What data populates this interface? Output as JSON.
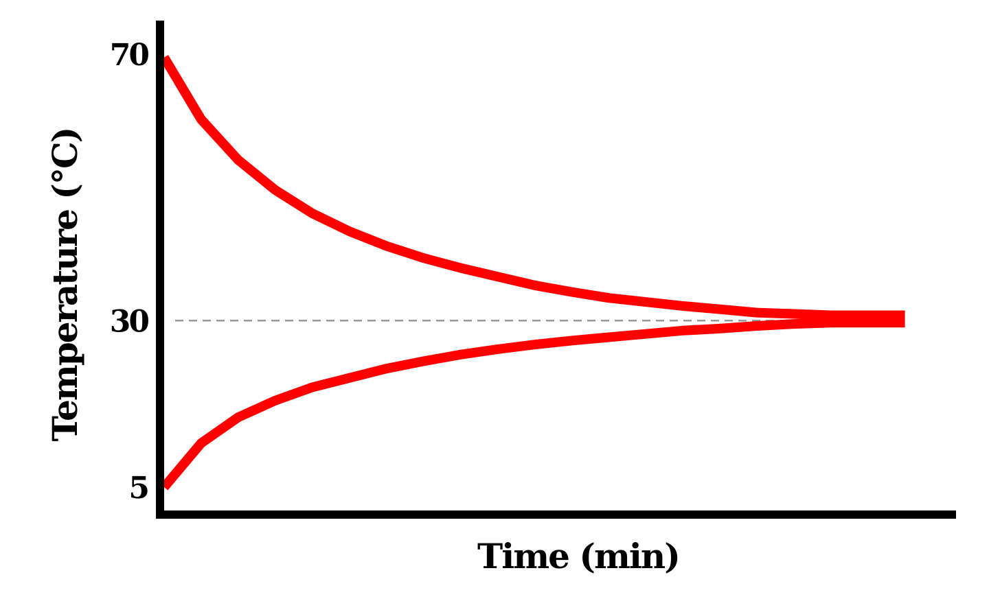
{
  "chart_data": {
    "type": "line",
    "title": "",
    "xlabel": "Time (min)",
    "ylabel": "Temperature (°C)",
    "yticks": [
      {
        "value": 70,
        "label": "70"
      },
      {
        "value": 30,
        "label": "30"
      },
      {
        "value": 5,
        "label": "5"
      }
    ],
    "reference_lines": [
      {
        "axis": "y",
        "value": 30,
        "style": "dashed",
        "color": "#999999"
      }
    ],
    "colors": {
      "series": "#ff0000",
      "axis": "#000000",
      "reference": "#999999"
    },
    "x": [
      0,
      0.5,
      1,
      1.5,
      2,
      2.5,
      3,
      3.5,
      4,
      4.5,
      5,
      5.5,
      6,
      6.5,
      7,
      7.5,
      8,
      8.5,
      9,
      9.5,
      10
    ],
    "series": [
      {
        "values": [
          69.5,
          60.2,
          54.1,
          49.6,
          46.1,
          43.4,
          41.2,
          39.4,
          37.9,
          36.6,
          35.3,
          34.3,
          33.4,
          32.8,
          32.2,
          31.7,
          31.2,
          31.0,
          30.8,
          30.8,
          30.8
        ]
      },
      {
        "values": [
          5.0,
          11.6,
          15.5,
          18.0,
          20.0,
          21.4,
          22.8,
          23.9,
          24.9,
          25.7,
          26.4,
          27.0,
          27.5,
          28.0,
          28.5,
          28.8,
          29.2,
          29.5,
          29.7,
          29.7,
          29.7
        ]
      }
    ],
    "xlim": [
      0,
      10.3
    ],
    "ylim": [
      1.5,
      74
    ],
    "grid": false,
    "legend": "none"
  }
}
